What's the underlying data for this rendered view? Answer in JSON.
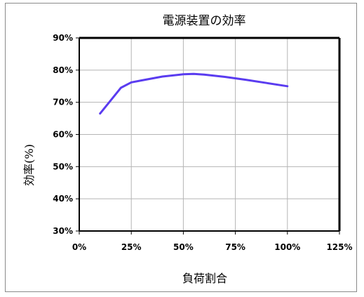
{
  "chart_data": {
    "type": "line",
    "title": "電源装置の効率",
    "xlabel": "負荷割合",
    "ylabel": "効率(%)",
    "xlim": [
      0,
      125
    ],
    "ylim": [
      30,
      90
    ],
    "x_ticks": [
      "0%",
      "25%",
      "50%",
      "75%",
      "100%",
      "125%"
    ],
    "y_ticks": [
      "90%",
      "80%",
      "70%",
      "60%",
      "50%",
      "40%",
      "30%"
    ],
    "grid": true,
    "legend": "none",
    "series": [
      {
        "color": "#5a3cf0",
        "x": [
          10,
          15,
          20,
          25,
          30,
          40,
          50,
          55,
          60,
          70,
          80,
          90,
          100
        ],
        "y": [
          66.5,
          70.5,
          74.5,
          76.2,
          76.8,
          78.0,
          78.7,
          78.8,
          78.6,
          77.9,
          77.0,
          76.0,
          75.0
        ]
      }
    ]
  }
}
